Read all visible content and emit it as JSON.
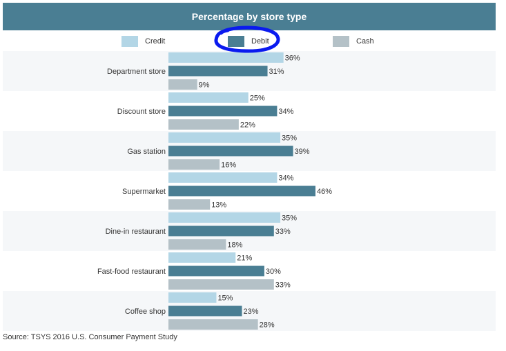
{
  "title": "Percentage by store type",
  "source": "Source: TSYS 2016 U.S. Consumer Payment Study",
  "colors": {
    "header": "#4a7e93",
    "band": "#f5f7f9",
    "annotation": "#0a1aef"
  },
  "chart_data": {
    "type": "bar",
    "orientation": "horizontal",
    "categories": [
      "Department store",
      "Discount store",
      "Gas station",
      "Supermarket",
      "Dine-in restaurant",
      "Fast-food restaurant",
      "Coffee shop"
    ],
    "series": [
      {
        "name": "Credit",
        "color": "#b3d6e6",
        "values": [
          36,
          25,
          35,
          34,
          35,
          21,
          15
        ]
      },
      {
        "name": "Debit",
        "color": "#4a7e93",
        "values": [
          31,
          34,
          39,
          46,
          33,
          30,
          23
        ]
      },
      {
        "name": "Cash",
        "color": "#b4c1c7",
        "values": [
          9,
          22,
          16,
          13,
          18,
          33,
          28
        ]
      }
    ],
    "value_suffix": "%",
    "xlim": [
      0,
      100
    ],
    "legend_position": "top",
    "grid": false
  }
}
